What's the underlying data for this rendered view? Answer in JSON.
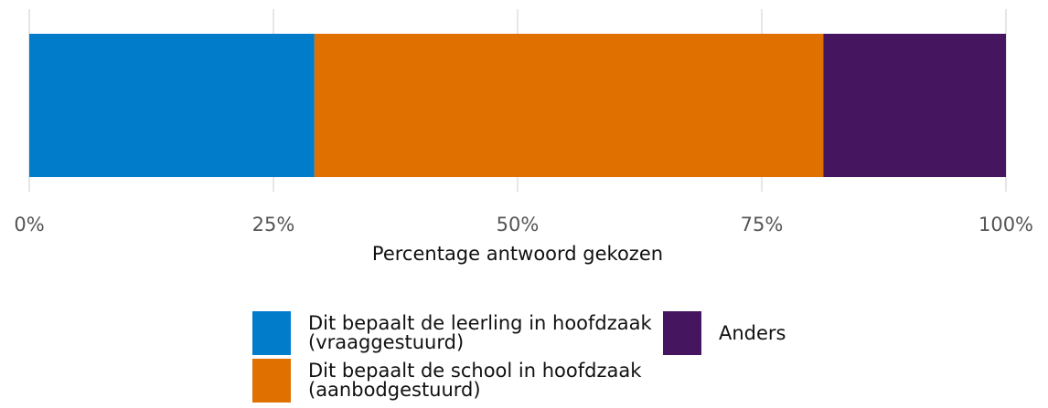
{
  "chart_data": {
    "type": "stacked-bar",
    "orientation": "horizontal",
    "xlabel": "Percentage antwoord gekozen",
    "series": [
      {
        "name": "Dit bepaalt de leerling in hoofdzaak (vraaggestuurd)",
        "color": "#007ccb",
        "values": [
          29.2
        ]
      },
      {
        "name": "Dit bepaalt de school in hoofdzaak (aanbodgestuurd)",
        "color": "#e07000",
        "values": [
          52.1
        ]
      },
      {
        "name": "Anders",
        "color": "#45165f",
        "values": [
          18.7
        ]
      }
    ],
    "xlim": [
      0,
      100
    ],
    "xticks": [
      {
        "value": 0,
        "label": "0%"
      },
      {
        "value": 25,
        "label": "25%"
      },
      {
        "value": 50,
        "label": "50%"
      },
      {
        "value": 75,
        "label": "75%"
      },
      {
        "value": 100,
        "label": "100%"
      }
    ],
    "grid": true,
    "legend": "bottom"
  }
}
